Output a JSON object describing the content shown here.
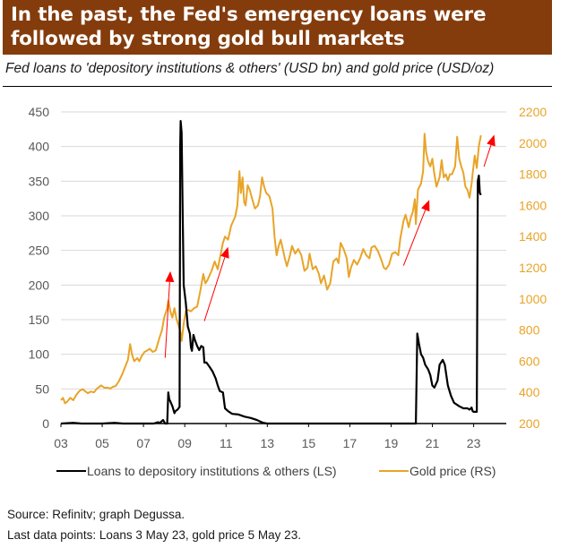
{
  "header": {
    "title_line1": "In the past, the Fed's emergency loans were",
    "title_line2": "followed by strong gold bull markets",
    "subtitle": "Fed loans to 'depository institutions & others' (USD bn) and gold price (USD/oz)",
    "background_color": "#843c0c"
  },
  "footer": {
    "source": "Source: Refinitv; graph Degussa.",
    "note": "Last data points: Loans 3 May 23, gold price  5 May 23."
  },
  "chart_data": {
    "type": "line",
    "title": "In the past, the Fed's emergency loans were followed by strong gold bull markets",
    "subtitle": "Fed loans to 'depository institutions & others' (USD bn) and gold price (USD/oz)",
    "xlabel": "",
    "x_ticks": [
      "03",
      "05",
      "07",
      "09",
      "11",
      "13",
      "15",
      "17",
      "19",
      "21",
      "23"
    ],
    "x_range": [
      2003,
      2024.3
    ],
    "y_left": {
      "label": "USD bn",
      "range": [
        0,
        450
      ],
      "ticks": [
        "0",
        "50",
        "100",
        "150",
        "200",
        "250",
        "300",
        "350",
        "400",
        "450"
      ],
      "color": "#595959"
    },
    "y_right": {
      "label": "USD/oz",
      "range": [
        200,
        2200
      ],
      "ticks": [
        "200",
        "400",
        "600",
        "800",
        "1000",
        "1200",
        "1400",
        "1600",
        "1800",
        "2000",
        "2200"
      ],
      "color": "#e8a428"
    },
    "grid": true,
    "legend_position": "bottom",
    "series": [
      {
        "name": "Loans to depository institutions & others (LS)",
        "axis": "left",
        "color": "#000000",
        "points": [
          [
            2003.0,
            0
          ],
          [
            2003.6,
            1
          ],
          [
            2004.0,
            0
          ],
          [
            2005.0,
            0
          ],
          [
            2005.6,
            1
          ],
          [
            2006.0,
            0
          ],
          [
            2007.0,
            0
          ],
          [
            2007.5,
            0
          ],
          [
            2007.7,
            2
          ],
          [
            2007.8,
            1
          ],
          [
            2007.95,
            5
          ],
          [
            2008.05,
            0
          ],
          [
            2008.15,
            0
          ],
          [
            2008.2,
            45
          ],
          [
            2008.25,
            35
          ],
          [
            2008.3,
            32
          ],
          [
            2008.4,
            25
          ],
          [
            2008.5,
            15
          ],
          [
            2008.55,
            18
          ],
          [
            2008.65,
            20
          ],
          [
            2008.7,
            22
          ],
          [
            2008.75,
            24
          ],
          [
            2008.78,
            400
          ],
          [
            2008.8,
            437
          ],
          [
            2008.85,
            420
          ],
          [
            2008.9,
            300
          ],
          [
            2008.95,
            200
          ],
          [
            2009.05,
            175
          ],
          [
            2009.15,
            140
          ],
          [
            2009.25,
            130
          ],
          [
            2009.3,
            110
          ],
          [
            2009.35,
            105
          ],
          [
            2009.42,
            128
          ],
          [
            2009.5,
            120
          ],
          [
            2009.6,
            112
          ],
          [
            2009.7,
            106
          ],
          [
            2009.8,
            112
          ],
          [
            2009.9,
            110
          ],
          [
            2009.95,
            88
          ],
          [
            2010.05,
            88
          ],
          [
            2010.2,
            82
          ],
          [
            2010.35,
            75
          ],
          [
            2010.5,
            65
          ],
          [
            2010.6,
            55
          ],
          [
            2010.7,
            47
          ],
          [
            2010.85,
            45
          ],
          [
            2010.95,
            22
          ],
          [
            2011.1,
            18
          ],
          [
            2011.3,
            14
          ],
          [
            2011.6,
            13
          ],
          [
            2011.9,
            10
          ],
          [
            2012.2,
            8
          ],
          [
            2012.5,
            5
          ],
          [
            2012.8,
            1
          ],
          [
            2013.0,
            0
          ],
          [
            2014.0,
            0
          ],
          [
            2015.0,
            0
          ],
          [
            2016.0,
            0
          ],
          [
            2017.0,
            0
          ],
          [
            2018.0,
            0
          ],
          [
            2019.0,
            0
          ],
          [
            2020.0,
            0
          ],
          [
            2020.2,
            0
          ],
          [
            2020.27,
            130
          ],
          [
            2020.35,
            115
          ],
          [
            2020.45,
            100
          ],
          [
            2020.55,
            95
          ],
          [
            2020.65,
            85
          ],
          [
            2020.8,
            78
          ],
          [
            2020.9,
            70
          ],
          [
            2021.0,
            55
          ],
          [
            2021.1,
            52
          ],
          [
            2021.25,
            62
          ],
          [
            2021.35,
            85
          ],
          [
            2021.5,
            92
          ],
          [
            2021.6,
            85
          ],
          [
            2021.75,
            55
          ],
          [
            2021.9,
            40
          ],
          [
            2022.05,
            30
          ],
          [
            2022.3,
            25
          ],
          [
            2022.5,
            22
          ],
          [
            2022.7,
            22
          ],
          [
            2022.8,
            20
          ],
          [
            2022.9,
            23
          ],
          [
            2022.95,
            18
          ],
          [
            2023.0,
            17
          ],
          [
            2023.15,
            17
          ],
          [
            2023.2,
            350
          ],
          [
            2023.25,
            358
          ],
          [
            2023.3,
            333
          ],
          [
            2023.35,
            330
          ]
        ]
      },
      {
        "name": "Gold price (RS)",
        "axis": "right",
        "color": "#e8a428",
        "points": [
          [
            2003.0,
            350
          ],
          [
            2003.1,
            365
          ],
          [
            2003.2,
            330
          ],
          [
            2003.3,
            340
          ],
          [
            2003.45,
            365
          ],
          [
            2003.6,
            350
          ],
          [
            2003.75,
            385
          ],
          [
            2003.9,
            410
          ],
          [
            2004.05,
            420
          ],
          [
            2004.2,
            405
          ],
          [
            2004.3,
            395
          ],
          [
            2004.45,
            405
          ],
          [
            2004.6,
            400
          ],
          [
            2004.75,
            425
          ],
          [
            2004.95,
            445
          ],
          [
            2005.1,
            430
          ],
          [
            2005.25,
            430
          ],
          [
            2005.4,
            425
          ],
          [
            2005.5,
            435
          ],
          [
            2005.65,
            440
          ],
          [
            2005.8,
            470
          ],
          [
            2005.95,
            510
          ],
          [
            2006.1,
            560
          ],
          [
            2006.25,
            610
          ],
          [
            2006.35,
            710
          ],
          [
            2006.45,
            640
          ],
          [
            2006.55,
            600
          ],
          [
            2006.7,
            620
          ],
          [
            2006.8,
            600
          ],
          [
            2006.9,
            630
          ],
          [
            2007.05,
            660
          ],
          [
            2007.2,
            670
          ],
          [
            2007.3,
            680
          ],
          [
            2007.45,
            660
          ],
          [
            2007.6,
            670
          ],
          [
            2007.75,
            740
          ],
          [
            2007.9,
            800
          ],
          [
            2008.0,
            880
          ],
          [
            2008.15,
            940
          ],
          [
            2008.2,
            990
          ],
          [
            2008.3,
            920
          ],
          [
            2008.4,
            880
          ],
          [
            2008.5,
            940
          ],
          [
            2008.6,
            870
          ],
          [
            2008.7,
            830
          ],
          [
            2008.8,
            780
          ],
          [
            2008.85,
            730
          ],
          [
            2008.95,
            840
          ],
          [
            2009.05,
            920
          ],
          [
            2009.15,
            930
          ],
          [
            2009.3,
            920
          ],
          [
            2009.45,
            940
          ],
          [
            2009.6,
            950
          ],
          [
            2009.75,
            1050
          ],
          [
            2009.9,
            1160
          ],
          [
            2010.0,
            1100
          ],
          [
            2010.1,
            1120
          ],
          [
            2010.3,
            1180
          ],
          [
            2010.45,
            1240
          ],
          [
            2010.6,
            1190
          ],
          [
            2010.7,
            1260
          ],
          [
            2010.85,
            1360
          ],
          [
            2010.95,
            1400
          ],
          [
            2011.1,
            1380
          ],
          [
            2011.25,
            1470
          ],
          [
            2011.45,
            1530
          ],
          [
            2011.55,
            1600
          ],
          [
            2011.65,
            1820
          ],
          [
            2011.72,
            1680
          ],
          [
            2011.8,
            1780
          ],
          [
            2011.88,
            1620
          ],
          [
            2011.95,
            1600
          ],
          [
            2012.05,
            1730
          ],
          [
            2012.15,
            1700
          ],
          [
            2012.25,
            1650
          ],
          [
            2012.4,
            1580
          ],
          [
            2012.55,
            1600
          ],
          [
            2012.65,
            1660
          ],
          [
            2012.75,
            1780
          ],
          [
            2012.85,
            1720
          ],
          [
            2012.95,
            1680
          ],
          [
            2013.1,
            1660
          ],
          [
            2013.25,
            1580
          ],
          [
            2013.35,
            1400
          ],
          [
            2013.45,
            1280
          ],
          [
            2013.55,
            1340
          ],
          [
            2013.65,
            1380
          ],
          [
            2013.75,
            1320
          ],
          [
            2013.85,
            1260
          ],
          [
            2013.95,
            1210
          ],
          [
            2014.1,
            1280
          ],
          [
            2014.2,
            1340
          ],
          [
            2014.35,
            1290
          ],
          [
            2014.5,
            1320
          ],
          [
            2014.65,
            1280
          ],
          [
            2014.8,
            1180
          ],
          [
            2014.95,
            1200
          ],
          [
            2015.05,
            1290
          ],
          [
            2015.2,
            1190
          ],
          [
            2015.35,
            1210
          ],
          [
            2015.5,
            1160
          ],
          [
            2015.6,
            1100
          ],
          [
            2015.75,
            1150
          ],
          [
            2015.9,
            1060
          ],
          [
            2016.05,
            1100
          ],
          [
            2016.2,
            1240
          ],
          [
            2016.35,
            1260
          ],
          [
            2016.45,
            1230
          ],
          [
            2016.55,
            1360
          ],
          [
            2016.7,
            1320
          ],
          [
            2016.85,
            1260
          ],
          [
            2016.95,
            1140
          ],
          [
            2017.05,
            1200
          ],
          [
            2017.2,
            1250
          ],
          [
            2017.35,
            1220
          ],
          [
            2017.5,
            1260
          ],
          [
            2017.65,
            1320
          ],
          [
            2017.8,
            1280
          ],
          [
            2017.95,
            1260
          ],
          [
            2018.05,
            1330
          ],
          [
            2018.2,
            1340
          ],
          [
            2018.35,
            1310
          ],
          [
            2018.5,
            1260
          ],
          [
            2018.65,
            1200
          ],
          [
            2018.75,
            1190
          ],
          [
            2018.9,
            1220
          ],
          [
            2019.05,
            1290
          ],
          [
            2019.2,
            1300
          ],
          [
            2019.35,
            1280
          ],
          [
            2019.45,
            1390
          ],
          [
            2019.6,
            1500
          ],
          [
            2019.7,
            1540
          ],
          [
            2019.85,
            1460
          ],
          [
            2019.95,
            1520
          ],
          [
            2020.05,
            1560
          ],
          [
            2020.15,
            1640
          ],
          [
            2020.2,
            1480
          ],
          [
            2020.3,
            1700
          ],
          [
            2020.45,
            1740
          ],
          [
            2020.55,
            1820
          ],
          [
            2020.62,
            2060
          ],
          [
            2020.7,
            1940
          ],
          [
            2020.8,
            1880
          ],
          [
            2020.9,
            1850
          ],
          [
            2021.0,
            1900
          ],
          [
            2021.1,
            1800
          ],
          [
            2021.2,
            1720
          ],
          [
            2021.35,
            1780
          ],
          [
            2021.45,
            1890
          ],
          [
            2021.55,
            1780
          ],
          [
            2021.65,
            1800
          ],
          [
            2021.75,
            1760
          ],
          [
            2021.85,
            1800
          ],
          [
            2021.95,
            1800
          ],
          [
            2022.1,
            1850
          ],
          [
            2022.2,
            2040
          ],
          [
            2022.3,
            1900
          ],
          [
            2022.4,
            1850
          ],
          [
            2022.5,
            1810
          ],
          [
            2022.6,
            1720
          ],
          [
            2022.7,
            1700
          ],
          [
            2022.8,
            1650
          ],
          [
            2022.9,
            1740
          ],
          [
            2022.95,
            1800
          ],
          [
            2023.05,
            1920
          ],
          [
            2023.15,
            1840
          ],
          [
            2023.25,
            1980
          ],
          [
            2023.35,
            2050
          ]
        ]
      }
    ],
    "annotations": [
      {
        "type": "arrow",
        "color": "#ff0000",
        "from": [
          2008.05,
          95
        ],
        "to": [
          2008.3,
          220
        ]
      },
      {
        "type": "arrow",
        "color": "#ff0000",
        "from": [
          2009.95,
          148
        ],
        "to": [
          2011.1,
          255
        ]
      },
      {
        "type": "arrow",
        "color": "#ff0000",
        "from": [
          2019.6,
          228
        ],
        "to": [
          2020.85,
          323
        ]
      },
      {
        "type": "arrow",
        "color": "#ff0000",
        "from": [
          2023.5,
          371
        ],
        "to": [
          2024.0,
          417
        ]
      }
    ]
  }
}
